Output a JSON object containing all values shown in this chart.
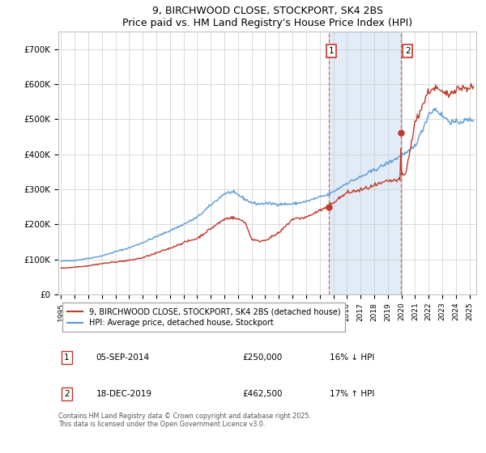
{
  "title": "9, BIRCHWOOD CLOSE, STOCKPORT, SK4 2BS",
  "subtitle": "Price paid vs. HM Land Registry's House Price Index (HPI)",
  "ylim": [
    0,
    750000
  ],
  "yticks": [
    0,
    100000,
    200000,
    300000,
    400000,
    500000,
    600000,
    700000
  ],
  "ytick_labels": [
    "£0",
    "£100K",
    "£200K",
    "£300K",
    "£400K",
    "£500K",
    "£600K",
    "£700K"
  ],
  "xlim_start": 1994.8,
  "xlim_end": 2025.5,
  "xtick_years": [
    1995,
    1996,
    1997,
    1998,
    1999,
    2000,
    2001,
    2002,
    2003,
    2004,
    2005,
    2006,
    2007,
    2008,
    2009,
    2010,
    2011,
    2012,
    2013,
    2014,
    2015,
    2016,
    2017,
    2018,
    2019,
    2020,
    2021,
    2022,
    2023,
    2024,
    2025
  ],
  "hpi_color": "#5b9bd5",
  "price_color": "#c0392b",
  "marker1_date": 2014.68,
  "marker1_price": 250000,
  "marker1_label": "05-SEP-2014",
  "marker1_amount": "£250,000",
  "marker1_note": "16% ↓ HPI",
  "marker2_date": 2019.96,
  "marker2_price": 462500,
  "marker2_label": "18-DEC-2019",
  "marker2_amount": "£462,500",
  "marker2_note": "17% ↑ HPI",
  "legend1": "9, BIRCHWOOD CLOSE, STOCKPORT, SK4 2BS (detached house)",
  "legend2": "HPI: Average price, detached house, Stockport",
  "footnote": "Contains HM Land Registry data © Crown copyright and database right 2025.\nThis data is licensed under the Open Government Licence v3.0.",
  "shaded_region_start": 2014.68,
  "shaded_region_end": 2019.96
}
